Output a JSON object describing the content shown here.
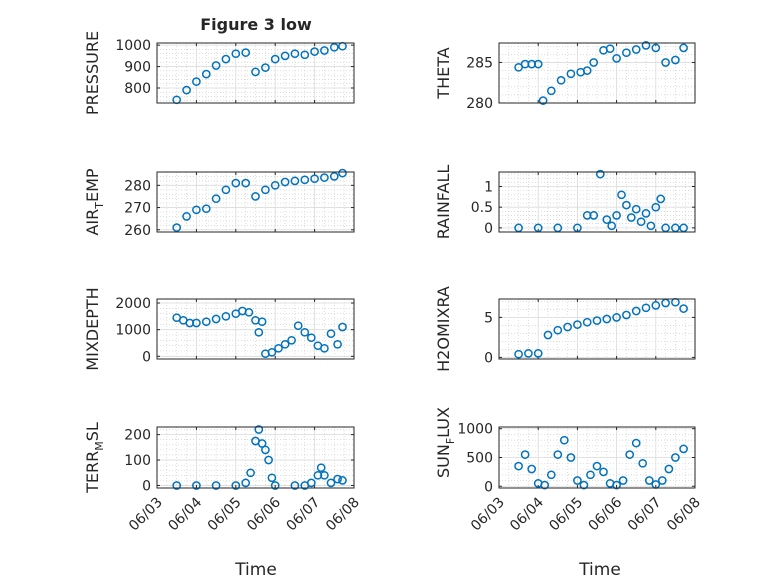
{
  "figure": {
    "title": "Figure 3 low",
    "xlabel": "Time",
    "date_ticks": [
      "06/03",
      "06/04",
      "06/05",
      "06/06",
      "06/07",
      "06/08"
    ],
    "marker_color": "#0072BD",
    "axis_color": "#262626",
    "grid": true
  },
  "chart_data": [
    {
      "type": "scatter",
      "ylabel": "PRESSURE",
      "ylim": [
        730,
        1010
      ],
      "yticks": [
        800,
        900,
        1000
      ],
      "x": [
        "06/03 12:00",
        "06/03 18:00",
        "06/04 00:00",
        "06/04 06:00",
        "06/04 12:00",
        "06/04 18:00",
        "06/05 00:00",
        "06/05 06:00",
        "06/05 12:00",
        "06/05 18:00",
        "06/06 00:00",
        "06/06 06:00",
        "06/06 12:00",
        "06/06 18:00",
        "06/07 00:00",
        "06/07 06:00",
        "06/07 12:00",
        "06/07 17:00"
      ],
      "y": [
        745,
        790,
        830,
        865,
        905,
        935,
        960,
        965,
        875,
        895,
        935,
        950,
        960,
        955,
        970,
        975,
        990,
        995
      ]
    },
    {
      "type": "scatter",
      "ylabel": "THETA",
      "ylim": [
        280,
        287.4
      ],
      "yticks": [
        280,
        285
      ],
      "x": [
        "06/03 12:00",
        "06/03 16:00",
        "06/03 20:00",
        "06/04 00:00",
        "06/04 03:00",
        "06/04 08:00",
        "06/04 14:00",
        "06/04 20:00",
        "06/05 02:00",
        "06/05 06:00",
        "06/05 10:00",
        "06/05 16:00",
        "06/05 20:00",
        "06/06 00:00",
        "06/06 06:00",
        "06/06 12:00",
        "06/06 18:00",
        "06/07 00:00",
        "06/07 06:00",
        "06/07 12:00",
        "06/07 17:00"
      ],
      "y": [
        284.4,
        284.8,
        284.8,
        284.8,
        280.3,
        281.5,
        282.8,
        283.6,
        283.8,
        284.0,
        285.0,
        286.5,
        286.7,
        285.5,
        286.2,
        286.6,
        287.1,
        286.8,
        285.0,
        285.3,
        286.8
      ]
    },
    {
      "type": "scatter",
      "ylabel": "AIR_TEMP",
      "ylim": [
        259,
        286
      ],
      "yticks": [
        260,
        270,
        280
      ],
      "x": [
        "06/03 12:00",
        "06/03 18:00",
        "06/04 00:00",
        "06/04 06:00",
        "06/04 12:00",
        "06/04 18:00",
        "06/05 00:00",
        "06/05 06:00",
        "06/05 12:00",
        "06/05 18:00",
        "06/06 00:00",
        "06/06 06:00",
        "06/06 12:00",
        "06/06 18:00",
        "06/07 00:00",
        "06/07 06:00",
        "06/07 12:00",
        "06/07 17:00"
      ],
      "y": [
        261,
        266,
        269,
        269.5,
        274,
        278,
        281,
        281,
        275,
        278,
        280,
        281.5,
        282,
        282.5,
        283,
        283.5,
        284,
        285.5
      ]
    },
    {
      "type": "scatter",
      "ylabel": "RAINFALL",
      "ylim": [
        -0.1,
        1.35
      ],
      "yticks": [
        0,
        0.5,
        1
      ],
      "x": [
        "06/03 12:00",
        "06/04 00:00",
        "06/04 12:00",
        "06/05 00:00",
        "06/05 06:00",
        "06/05 10:00",
        "06/05 14:00",
        "06/05 18:00",
        "06/05 21:00",
        "06/06 00:00",
        "06/06 03:00",
        "06/06 06:00",
        "06/06 09:00",
        "06/06 12:00",
        "06/06 15:00",
        "06/06 18:00",
        "06/06 21:00",
        "06/07 00:00",
        "06/07 03:00",
        "06/07 06:00",
        "06/07 12:00",
        "06/07 17:00"
      ],
      "y": [
        0,
        0,
        0,
        0,
        0.3,
        0.3,
        1.3,
        0.2,
        0.05,
        0.3,
        0.8,
        0.55,
        0.25,
        0.45,
        0.15,
        0.35,
        0.05,
        0.5,
        0.7,
        0,
        0,
        0
      ]
    },
    {
      "type": "scatter",
      "ylabel": "MIXDEPTH",
      "ylim": [
        -100,
        2150
      ],
      "yticks": [
        0,
        1000,
        2000
      ],
      "x": [
        "06/03 12:00",
        "06/03 16:00",
        "06/03 20:00",
        "06/04 00:00",
        "06/04 06:00",
        "06/04 12:00",
        "06/04 18:00",
        "06/05 00:00",
        "06/05 04:00",
        "06/05 08:00",
        "06/05 12:00",
        "06/05 14:00",
        "06/05 16:00",
        "06/05 18:00",
        "06/05 22:00",
        "06/06 02:00",
        "06/06 06:00",
        "06/06 10:00",
        "06/06 14:00",
        "06/06 18:00",
        "06/06 22:00",
        "06/07 02:00",
        "06/07 06:00",
        "06/07 10:00",
        "06/07 14:00",
        "06/07 17:00"
      ],
      "y": [
        1450,
        1350,
        1250,
        1250,
        1300,
        1400,
        1500,
        1600,
        1700,
        1650,
        1350,
        900,
        1300,
        100,
        150,
        300,
        450,
        600,
        1150,
        900,
        700,
        400,
        300,
        850,
        450,
        1100
      ]
    },
    {
      "type": "scatter",
      "ylabel": "H2OMIXRA",
      "ylim": [
        -0.2,
        7.3
      ],
      "yticks": [
        0,
        5
      ],
      "x": [
        "06/03 12:00",
        "06/03 18:00",
        "06/04 00:00",
        "06/04 06:00",
        "06/04 12:00",
        "06/04 18:00",
        "06/05 00:00",
        "06/05 06:00",
        "06/05 12:00",
        "06/05 18:00",
        "06/06 00:00",
        "06/06 06:00",
        "06/06 12:00",
        "06/06 18:00",
        "06/07 00:00",
        "06/07 06:00",
        "06/07 12:00",
        "06/07 17:00"
      ],
      "y": [
        0.4,
        0.5,
        0.5,
        2.8,
        3.4,
        3.8,
        4.1,
        4.4,
        4.6,
        4.8,
        5.0,
        5.3,
        5.8,
        6.2,
        6.5,
        6.8,
        6.9,
        6.1
      ]
    },
    {
      "type": "scatter",
      "ylabel": "TERR_MSL",
      "ylim": [
        -10,
        230
      ],
      "yticks": [
        0,
        100,
        200
      ],
      "x": [
        "06/03 12:00",
        "06/04 00:00",
        "06/04 12:00",
        "06/05 00:00",
        "06/05 06:00",
        "06/05 09:00",
        "06/05 12:00",
        "06/05 14:00",
        "06/05 16:00",
        "06/05 18:00",
        "06/05 20:00",
        "06/05 22:00",
        "06/06 00:00",
        "06/06 12:00",
        "06/06 18:00",
        "06/06 22:00",
        "06/07 02:00",
        "06/07 04:00",
        "06/07 06:00",
        "06/07 10:00",
        "06/07 14:00",
        "06/07 17:00"
      ],
      "y": [
        0,
        0,
        0,
        0,
        10,
        50,
        175,
        220,
        165,
        140,
        100,
        30,
        0,
        0,
        0,
        10,
        40,
        70,
        40,
        10,
        25,
        20
      ]
    },
    {
      "type": "scatter",
      "ylabel": "SUN_FLUX",
      "ylim": [
        -30,
        1030
      ],
      "yticks": [
        0,
        500,
        1000
      ],
      "x": [
        "06/03 12:00",
        "06/03 16:00",
        "06/03 20:00",
        "06/04 00:00",
        "06/04 04:00",
        "06/04 08:00",
        "06/04 12:00",
        "06/04 16:00",
        "06/04 20:00",
        "06/05 00:00",
        "06/05 04:00",
        "06/05 08:00",
        "06/05 12:00",
        "06/05 16:00",
        "06/05 20:00",
        "06/06 00:00",
        "06/06 04:00",
        "06/06 08:00",
        "06/06 12:00",
        "06/06 16:00",
        "06/06 20:00",
        "06/07 00:00",
        "06/07 04:00",
        "06/07 08:00",
        "06/07 12:00",
        "06/07 17:00"
      ],
      "y": [
        350,
        550,
        300,
        50,
        20,
        200,
        550,
        800,
        500,
        100,
        20,
        200,
        350,
        250,
        50,
        20,
        100,
        550,
        750,
        400,
        100,
        30,
        100,
        300,
        500,
        650
      ]
    }
  ]
}
